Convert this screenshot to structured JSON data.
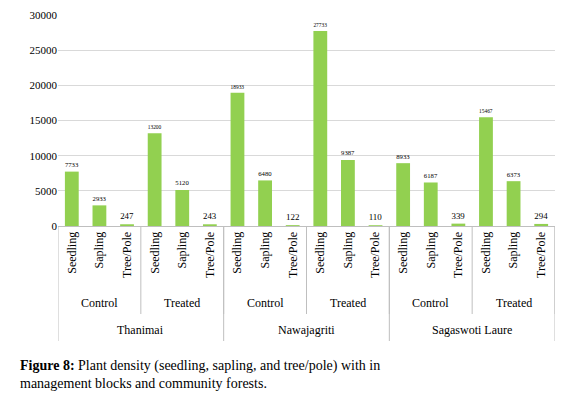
{
  "chart_data": {
    "type": "bar",
    "categories": [
      "Seedling",
      "Sapling",
      "Tree/Pole",
      "Seedling",
      "Sapling",
      "Tree/Pole",
      "Seedling",
      "Sapling",
      "Tree/Pole",
      "Seedling",
      "Sapling",
      "Tree/Pole",
      "Seedling",
      "Sapling",
      "Tree/Pole",
      "Seedling",
      "Sapling",
      "Tree/Pole"
    ],
    "groups": [
      "Control",
      "Control",
      "Control",
      "Treated",
      "Treated",
      "Treated",
      "Control",
      "Control",
      "Control",
      "Treated",
      "Treated",
      "Treated",
      "Control",
      "Control",
      "Control",
      "Treated",
      "Treated",
      "Treated"
    ],
    "sites": [
      "Thanimai",
      "Thanimai",
      "Thanimai",
      "Thanimai",
      "Thanimai",
      "Thanimai",
      "Nawajagriti",
      "Nawajagriti",
      "Nawajagriti",
      "Nawajagriti",
      "Nawajagriti",
      "Nawajagriti",
      "Sagaswoti Laure",
      "Sagaswoti Laure",
      "Sagaswoti Laure",
      "Sagaswoti Laure",
      "Sagaswoti Laure",
      "Sagaswoti Laure"
    ],
    "values": [
      7733,
      2933,
      247,
      13200,
      5120,
      243,
      18933,
      6480,
      122,
      27733,
      9387,
      110,
      8933,
      6187,
      339,
      15467,
      6373,
      294
    ],
    "color": "#92d050",
    "ylim": [
      0,
      30000
    ],
    "yticks": [
      0,
      5000,
      10000,
      15000,
      20000,
      25000,
      30000
    ],
    "grid": true,
    "data_labels": true,
    "caption": [
      "Figure 8: Plant density (seedling, sapling, and tree/pole) with in",
      "management blocks and community forests."
    ]
  }
}
